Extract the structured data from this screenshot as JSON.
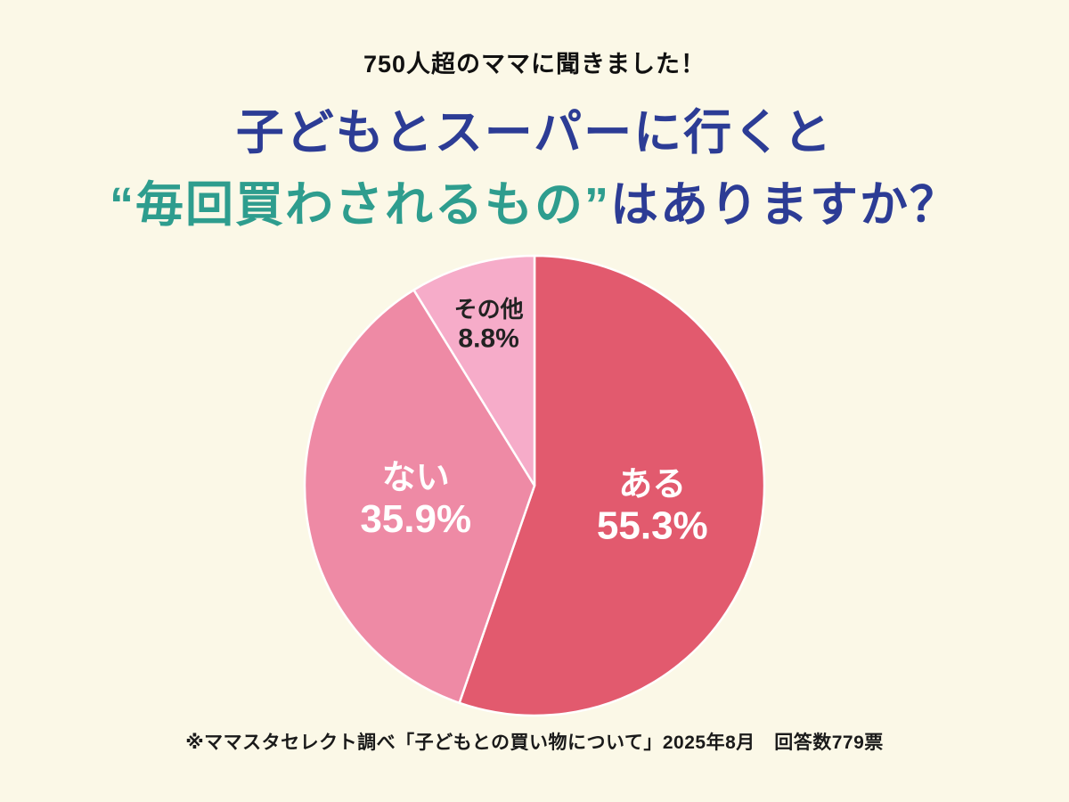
{
  "page": {
    "subtitle": "750人超のママに聞きました！",
    "title_line1": "子どもとスーパーに行くと",
    "title_line2_quoted": "“毎回買わされるもの”",
    "title_line2_rest": "はありますか？",
    "footnote": "※ママスタセレクト調べ「子どもとの買い物について」2025年8月　回答数779票"
  },
  "colors": {
    "background": "#FBF8E7",
    "title_navy": "#2C3C95",
    "title_teal": "#2E9D8E",
    "slice_aru": "#E25A6E",
    "slice_nai": "#EE8AA5",
    "slice_sonota": "#F6ACC9",
    "slice_gap": "#FFFFFF"
  },
  "chart_data": {
    "type": "pie",
    "title": "子どもとスーパーに行くと“毎回買わされるもの”はありますか？",
    "start_angle_deg": 0,
    "direction": "clockwise",
    "legend_position": "none",
    "total_label": "回答数779票",
    "slices": [
      {
        "label": "ある",
        "value": 55.3,
        "color": "#E25A6E",
        "text_color": "#FFFFFF",
        "label_radius": 0.52,
        "font_size": 38,
        "value_font_size": 44
      },
      {
        "label": "ない",
        "value": 35.9,
        "color": "#EE8AA5",
        "text_color": "#FFFFFF",
        "label_radius": 0.52,
        "font_size": 38,
        "value_font_size": 44
      },
      {
        "label": "その他",
        "value": 8.8,
        "color": "#F6ACC9",
        "text_color": "#222222",
        "label_radius": 0.73,
        "font_size": 26,
        "value_font_size": 30
      }
    ]
  }
}
